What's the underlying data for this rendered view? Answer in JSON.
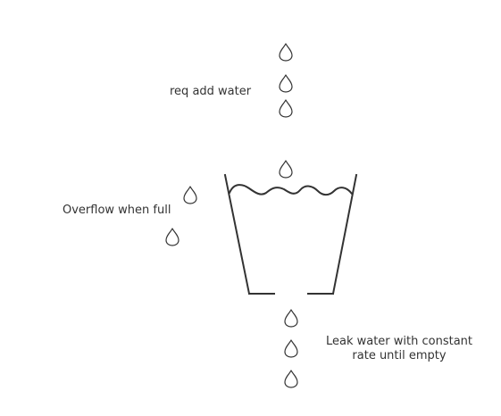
{
  "labels": {
    "add_water": "req add water",
    "overflow": "Overflow when full",
    "leak_line1": "Leak water with constant",
    "leak_line2": "rate until empty"
  },
  "colors": {
    "stroke": "#333333",
    "text": "#333333",
    "background": "#ffffff"
  },
  "icons": {
    "drop": "water-drop-icon",
    "bucket": "bucket-icon",
    "water": "water-surface-wave"
  }
}
